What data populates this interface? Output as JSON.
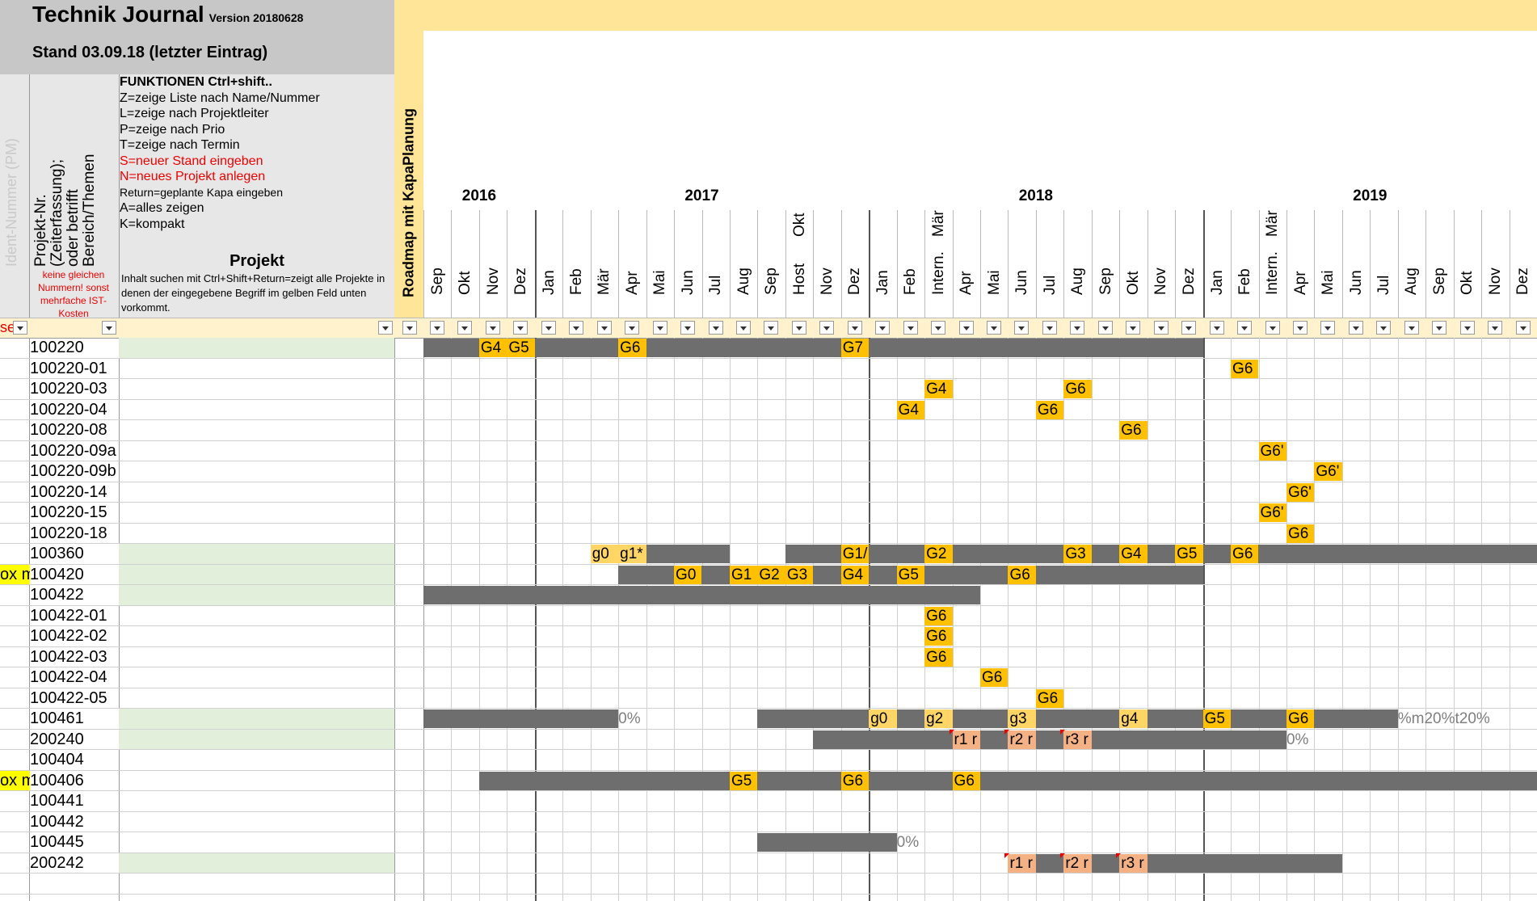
{
  "title": {
    "main": "Technik Journal",
    "version": "Version 20180628",
    "stand": "Stand 03.09.18 (letzter Eintrag)"
  },
  "headers": {
    "ident": "Ident-Nummer (PM)",
    "projnr_lines": [
      "Projekt-Nr.",
      "(Zeiterfassung);",
      "oder betrifft",
      "Bereich/Themen"
    ],
    "red_note": "keine gleichen Nummern! sonst mehrfache IST-Kosten",
    "projekt": "Projekt",
    "projekt_desc": "Inhalt suchen mit Ctrl+Shift+Return=zeigt alle Projekte in denen der eingegebene Begriff im gelben Feld unten vorkommt.",
    "roadmap": "Roadmap mit KapaPlanung",
    "left_filter_text": "se"
  },
  "functions": [
    {
      "text": "FUNKTIONEN Ctrl+shift..",
      "style": "bold"
    },
    {
      "text": "Z=zeige Liste nach Name/Nummer",
      "style": ""
    },
    {
      "text": "L=zeige nach Projektleiter",
      "style": ""
    },
    {
      "text": "P=zeige nach Prio",
      "style": ""
    },
    {
      "text": "T=zeige nach Termin",
      "style": ""
    },
    {
      "text": "S=neuer Stand eingeben",
      "style": "red"
    },
    {
      "text": "N=neues Projekt anlegen",
      "style": "red"
    },
    {
      "text": "Return=geplante Kapa eingeben",
      "style": "small"
    },
    {
      "text": "A=alles zeigen",
      "style": ""
    },
    {
      "text": "K=kompakt",
      "style": ""
    }
  ],
  "years": [
    {
      "label": "2016",
      "start": 0,
      "span": 4
    },
    {
      "label": "2017",
      "start": 4,
      "span": 12
    },
    {
      "label": "2018",
      "start": 16,
      "span": 12
    },
    {
      "label": "2019",
      "start": 28,
      "span": 12
    }
  ],
  "months": [
    {
      "label": "Sep"
    },
    {
      "label": "Okt"
    },
    {
      "label": "Nov"
    },
    {
      "label": "Dez"
    },
    {
      "label": "Jan"
    },
    {
      "label": "Feb"
    },
    {
      "label": "Mär"
    },
    {
      "label": "Apr"
    },
    {
      "label": "Mai"
    },
    {
      "label": "Jun"
    },
    {
      "label": "Jul"
    },
    {
      "label": "Aug"
    },
    {
      "label": "Sep"
    },
    {
      "label": "Okt",
      "sub": "Host"
    },
    {
      "label": "Nov"
    },
    {
      "label": "Dez"
    },
    {
      "label": "Jan"
    },
    {
      "label": "Feb"
    },
    {
      "label": "Mär",
      "sub": "Intern."
    },
    {
      "label": "Apr"
    },
    {
      "label": "Mai"
    },
    {
      "label": "Jun"
    },
    {
      "label": "Jul"
    },
    {
      "label": "Aug"
    },
    {
      "label": "Sep"
    },
    {
      "label": "Okt"
    },
    {
      "label": "Nov"
    },
    {
      "label": "Dez"
    },
    {
      "label": "Jan"
    },
    {
      "label": "Feb"
    },
    {
      "label": "Mär",
      "sub": "Intern."
    },
    {
      "label": "Apr"
    },
    {
      "label": "Mai"
    },
    {
      "label": "Jun"
    },
    {
      "label": "Jul"
    },
    {
      "label": "Aug"
    },
    {
      "label": "Sep"
    },
    {
      "label": "Okt"
    },
    {
      "label": "Nov"
    },
    {
      "label": "Dez"
    }
  ],
  "rows": [
    {
      "id": "100220",
      "green": true,
      "left": "",
      "bars": [
        [
          0,
          28
        ]
      ],
      "gates": [
        [
          2,
          "G4"
        ],
        [
          3,
          "G5"
        ],
        [
          7,
          "G6"
        ],
        [
          15,
          "G7"
        ]
      ],
      "tags": [],
      "pct": []
    },
    {
      "id": "100220-01",
      "green": false,
      "left": "",
      "bars": [],
      "gates": [
        [
          29,
          "G6"
        ]
      ],
      "tags": [],
      "pct": []
    },
    {
      "id": "100220-03",
      "green": false,
      "left": "",
      "bars": [],
      "gates": [
        [
          18,
          "G4"
        ],
        [
          23,
          "G6"
        ]
      ],
      "tags": [],
      "pct": []
    },
    {
      "id": "100220-04",
      "green": false,
      "left": "",
      "bars": [],
      "gates": [
        [
          17,
          "G4"
        ],
        [
          22,
          "G6"
        ]
      ],
      "tags": [],
      "pct": []
    },
    {
      "id": "100220-08",
      "green": false,
      "left": "",
      "bars": [],
      "gates": [
        [
          25,
          "G6"
        ]
      ],
      "tags": [],
      "pct": []
    },
    {
      "id": "100220-09a",
      "green": false,
      "left": "",
      "bars": [],
      "gates": [
        [
          30,
          "G6'"
        ]
      ],
      "tags": [],
      "pct": []
    },
    {
      "id": "100220-09b",
      "green": false,
      "left": "",
      "bars": [],
      "gates": [
        [
          32,
          "G6'"
        ]
      ],
      "tags": [],
      "pct": []
    },
    {
      "id": "100220-14",
      "green": false,
      "left": "",
      "bars": [],
      "gates": [
        [
          31,
          "G6'"
        ]
      ],
      "tags": [],
      "pct": []
    },
    {
      "id": "100220-15",
      "green": false,
      "left": "",
      "bars": [],
      "gates": [
        [
          30,
          "G6'"
        ]
      ],
      "tags": [],
      "pct": []
    },
    {
      "id": "100220-18",
      "green": false,
      "left": "",
      "bars": [],
      "gates": [
        [
          31,
          "G6"
        ]
      ],
      "tags": [],
      "pct": []
    },
    {
      "id": "100360",
      "green": true,
      "left": "",
      "bars": [
        [
          7,
          4
        ],
        [
          13,
          27
        ]
      ],
      "gates": [
        [
          6,
          "g0"
        ],
        [
          7,
          "g1*"
        ],
        [
          15,
          "G1/"
        ],
        [
          18,
          "G2"
        ],
        [
          23,
          "G3"
        ],
        [
          25,
          "G4"
        ],
        [
          27,
          "G5"
        ],
        [
          29,
          "G6"
        ]
      ],
      "tags": [],
      "pct": []
    },
    {
      "id": "100420",
      "green": true,
      "left": "ox m",
      "bars": [
        [
          7,
          21
        ]
      ],
      "gates": [
        [
          9,
          "G0"
        ],
        [
          11,
          "G1"
        ],
        [
          12,
          "G2"
        ],
        [
          13,
          "G3"
        ],
        [
          15,
          "G4"
        ],
        [
          17,
          "G5"
        ],
        [
          21,
          "G6"
        ]
      ],
      "tags": [],
      "pct": []
    },
    {
      "id": "100422",
      "green": true,
      "left": "",
      "bars": [
        [
          0,
          20
        ]
      ],
      "gates": [],
      "tags": [],
      "pct": []
    },
    {
      "id": "100422-01",
      "green": false,
      "left": "",
      "bars": [],
      "gates": [
        [
          18,
          "G6"
        ]
      ],
      "tags": [],
      "pct": []
    },
    {
      "id": "100422-02",
      "green": false,
      "left": "",
      "bars": [],
      "gates": [
        [
          18,
          "G6"
        ]
      ],
      "tags": [],
      "pct": []
    },
    {
      "id": "100422-03",
      "green": false,
      "left": "",
      "bars": [],
      "gates": [
        [
          18,
          "G6"
        ]
      ],
      "tags": [],
      "pct": []
    },
    {
      "id": "100422-04",
      "green": false,
      "left": "",
      "bars": [],
      "gates": [
        [
          20,
          "G6"
        ]
      ],
      "tags": [],
      "pct": []
    },
    {
      "id": "100422-05",
      "green": false,
      "left": "",
      "bars": [],
      "gates": [
        [
          22,
          "G6"
        ]
      ],
      "tags": [],
      "pct": []
    },
    {
      "id": "100461",
      "green": true,
      "left": "",
      "bars": [
        [
          0,
          7
        ],
        [
          12,
          23
        ]
      ],
      "gates": [
        [
          16,
          "g0"
        ],
        [
          18,
          "g2"
        ],
        [
          21,
          "g3"
        ],
        [
          25,
          "g4"
        ],
        [
          28,
          "G5"
        ],
        [
          31,
          "G6"
        ]
      ],
      "tags": [],
      "pct": [
        [
          7,
          "0%"
        ],
        [
          35,
          "%m20%t20%"
        ]
      ]
    },
    {
      "id": "200240",
      "green": true,
      "left": "",
      "bars": [
        [
          14,
          17
        ]
      ],
      "gates": [],
      "tags": [
        [
          19,
          "r1 r"
        ],
        [
          21,
          "r2 r"
        ],
        [
          23,
          "r3 r"
        ]
      ],
      "pct": [
        [
          31,
          "0%"
        ]
      ]
    },
    {
      "id": "100404",
      "green": false,
      "left": "",
      "bars": [],
      "gates": [],
      "tags": [],
      "pct": []
    },
    {
      "id": "100406",
      "green": false,
      "left": "ox m",
      "bars": [
        [
          2,
          38
        ]
      ],
      "gates": [
        [
          11,
          "G5"
        ],
        [
          15,
          "G6"
        ],
        [
          19,
          "G6"
        ]
      ],
      "tags": [],
      "pct": []
    },
    {
      "id": "100441",
      "green": false,
      "left": "",
      "bars": [],
      "gates": [],
      "tags": [],
      "pct": []
    },
    {
      "id": "100442",
      "green": false,
      "left": "",
      "bars": [],
      "gates": [],
      "tags": [],
      "pct": []
    },
    {
      "id": "100445",
      "green": false,
      "left": "",
      "bars": [
        [
          12,
          5
        ]
      ],
      "gates": [],
      "tags": [],
      "pct": [
        [
          17,
          "0%"
        ]
      ]
    },
    {
      "id": "200242",
      "green": true,
      "left": "",
      "bars": [
        [
          21,
          12
        ]
      ],
      "gates": [],
      "tags": [
        [
          21,
          "r1 r"
        ],
        [
          23,
          "r2 r"
        ],
        [
          25,
          "r3 r"
        ]
      ],
      "pct": []
    },
    {
      "id": "",
      "green": false,
      "left": "",
      "bars": [],
      "gates": [],
      "tags": [],
      "pct": []
    }
  ],
  "colors": {
    "bar": "#6e6e6e",
    "gate": "#ffc000",
    "tag": "#f4b183",
    "green_row": "#e2efda",
    "header_yellow": "#ffe598"
  }
}
